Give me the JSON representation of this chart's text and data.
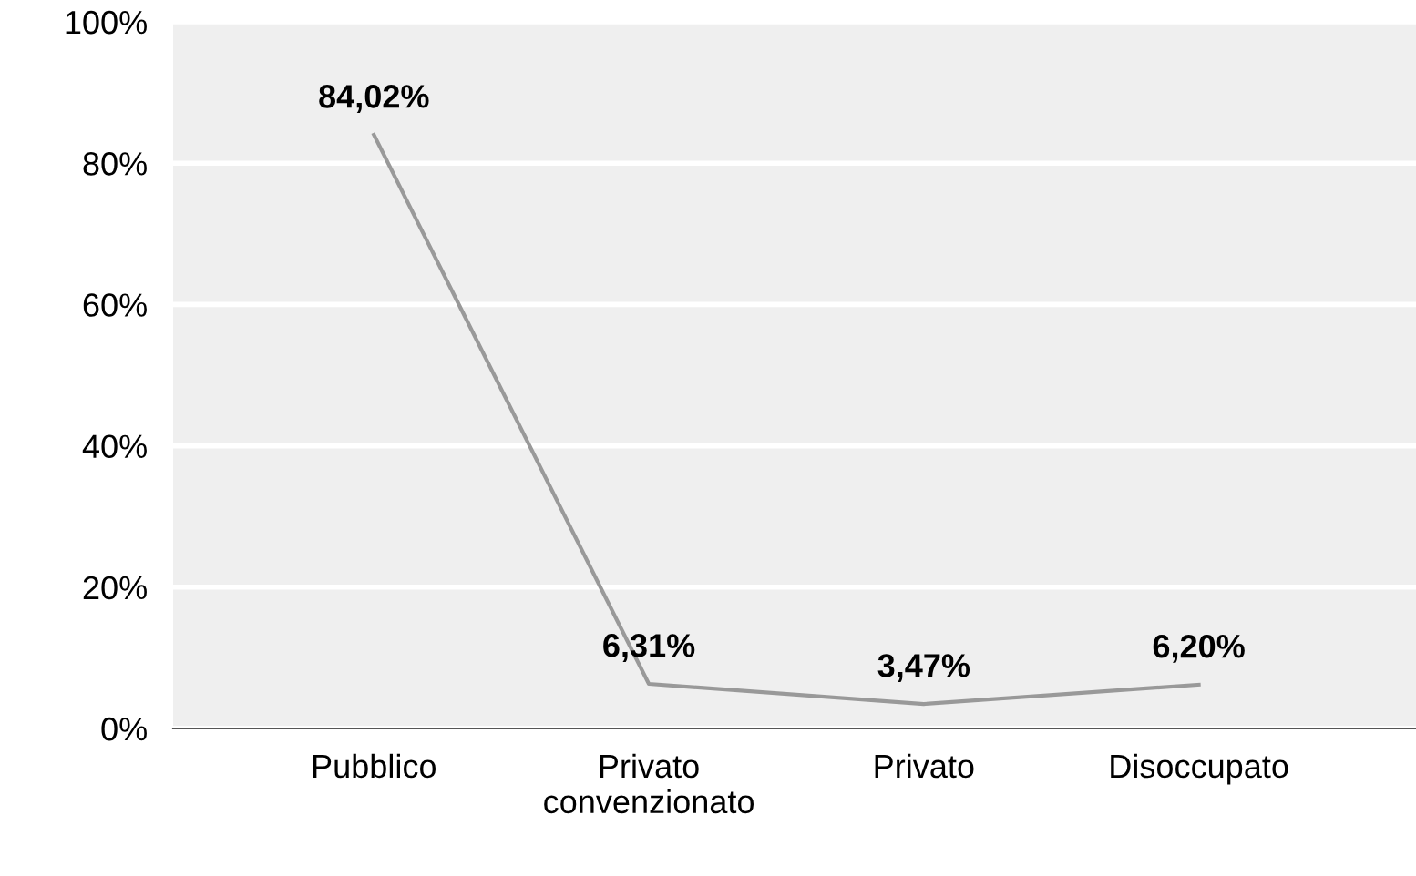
{
  "chart_data": {
    "type": "line",
    "categories": [
      "Pubblico",
      "Privato\nconvenzionato",
      "Privato",
      "Disoccupato"
    ],
    "values": [
      84.02,
      6.31,
      3.47,
      6.2
    ],
    "value_labels": [
      "84,02%",
      "6,31%",
      "3,47%",
      "6,20%"
    ],
    "color": "#999999",
    "ylim": [
      0,
      100
    ],
    "yticks": [
      {
        "value": 0,
        "label": "0%"
      },
      {
        "value": 20,
        "label": "20%"
      },
      {
        "value": 40,
        "label": "40%"
      },
      {
        "value": 60,
        "label": "60%"
      },
      {
        "value": 80,
        "label": "80%"
      },
      {
        "value": 100,
        "label": "100%"
      }
    ],
    "grid": "y",
    "legend": false,
    "marker": "none",
    "line_style": "solid"
  }
}
